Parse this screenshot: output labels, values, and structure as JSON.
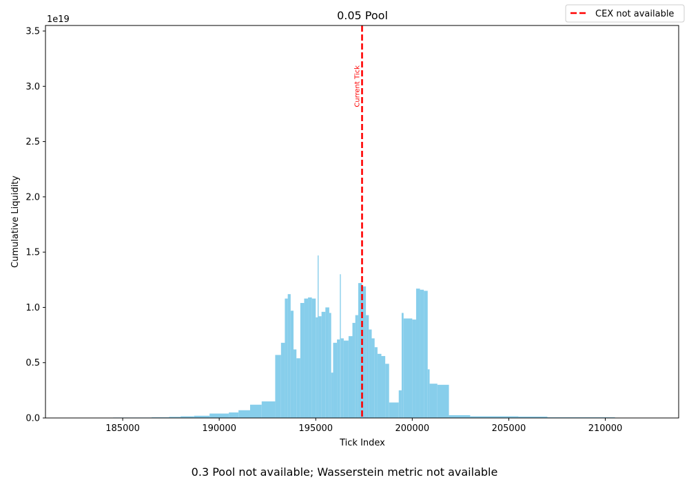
{
  "chart_data": {
    "type": "bar",
    "title": "0.05 Pool",
    "xlabel": "Tick Index",
    "ylabel": "Cumulative Liquidity",
    "y_offset_label": "1e19",
    "xlim": [
      181000,
      213800
    ],
    "ylim": [
      0,
      3.55
    ],
    "x_ticks": [
      185000,
      190000,
      195000,
      200000,
      205000,
      210000
    ],
    "x_tick_labels": [
      "185000",
      "190000",
      "195000",
      "200000",
      "205000",
      "210000"
    ],
    "y_ticks": [
      0.0,
      0.5,
      1.0,
      1.5,
      2.0,
      2.5,
      3.0,
      3.5
    ],
    "y_tick_labels": [
      "0.0",
      "0.5",
      "1.0",
      "1.5",
      "2.0",
      "2.5",
      "3.0",
      "3.5"
    ],
    "bar_color": "#87ceeb",
    "current_tick": 197400,
    "current_tick_label": "Current Tick",
    "current_tick_color": "#ff0000",
    "legend": {
      "label": "CEX not available",
      "placement": "top-right"
    },
    "grid": false,
    "segments": [
      [
        182000,
        184500,
        0.002
      ],
      [
        184500,
        186500,
        0.004
      ],
      [
        186500,
        187400,
        0.006
      ],
      [
        187400,
        188000,
        0.01
      ],
      [
        188000,
        188700,
        0.015
      ],
      [
        188700,
        189500,
        0.02
      ],
      [
        189500,
        190500,
        0.04
      ],
      [
        190500,
        191000,
        0.05
      ],
      [
        191000,
        191600,
        0.07
      ],
      [
        191600,
        192200,
        0.12
      ],
      [
        192200,
        192900,
        0.15
      ],
      [
        192900,
        193200,
        0.57
      ],
      [
        193200,
        193400,
        0.68
      ],
      [
        193400,
        193550,
        1.08
      ],
      [
        193550,
        193700,
        1.12
      ],
      [
        193700,
        193850,
        0.97
      ],
      [
        193850,
        194000,
        0.62
      ],
      [
        194000,
        194200,
        0.54
      ],
      [
        194200,
        194400,
        1.04
      ],
      [
        194400,
        194600,
        1.08
      ],
      [
        194600,
        194800,
        1.09
      ],
      [
        194800,
        195000,
        1.08
      ],
      [
        195000,
        195100,
        0.91
      ],
      [
        195100,
        195150,
        1.47
      ],
      [
        195150,
        195300,
        0.92
      ],
      [
        195300,
        195500,
        0.96
      ],
      [
        195500,
        195700,
        1.0
      ],
      [
        195700,
        195800,
        0.95
      ],
      [
        195800,
        195900,
        0.41
      ],
      [
        195900,
        196100,
        0.68
      ],
      [
        196100,
        196250,
        0.71
      ],
      [
        196250,
        196300,
        1.3
      ],
      [
        196300,
        196450,
        0.72
      ],
      [
        196450,
        196700,
        0.7
      ],
      [
        196700,
        196900,
        0.74
      ],
      [
        196900,
        197050,
        0.86
      ],
      [
        197050,
        197200,
        0.93
      ],
      [
        197200,
        197400,
        1.22
      ],
      [
        197400,
        197600,
        1.19
      ],
      [
        197600,
        197750,
        0.93
      ],
      [
        197750,
        197900,
        0.8
      ],
      [
        197900,
        198050,
        0.72
      ],
      [
        198050,
        198200,
        0.64
      ],
      [
        198200,
        198400,
        0.58
      ],
      [
        198400,
        198600,
        0.56
      ],
      [
        198600,
        198800,
        0.49
      ],
      [
        198800,
        199300,
        0.14
      ],
      [
        199300,
        199450,
        0.25
      ],
      [
        199450,
        199550,
        0.95
      ],
      [
        199550,
        200000,
        0.9
      ],
      [
        200000,
        200200,
        0.89
      ],
      [
        200200,
        200400,
        1.17
      ],
      [
        200400,
        200600,
        1.16
      ],
      [
        200600,
        200800,
        1.15
      ],
      [
        200800,
        200900,
        0.44
      ],
      [
        200900,
        201300,
        0.31
      ],
      [
        201300,
        201900,
        0.3
      ],
      [
        201900,
        203000,
        0.025
      ],
      [
        203000,
        205500,
        0.015
      ],
      [
        205500,
        207000,
        0.012
      ],
      [
        207000,
        210500,
        0.006
      ],
      [
        210500,
        212300,
        0.003
      ]
    ]
  },
  "caption": "0.3 Pool not available; Wasserstein metric not available"
}
